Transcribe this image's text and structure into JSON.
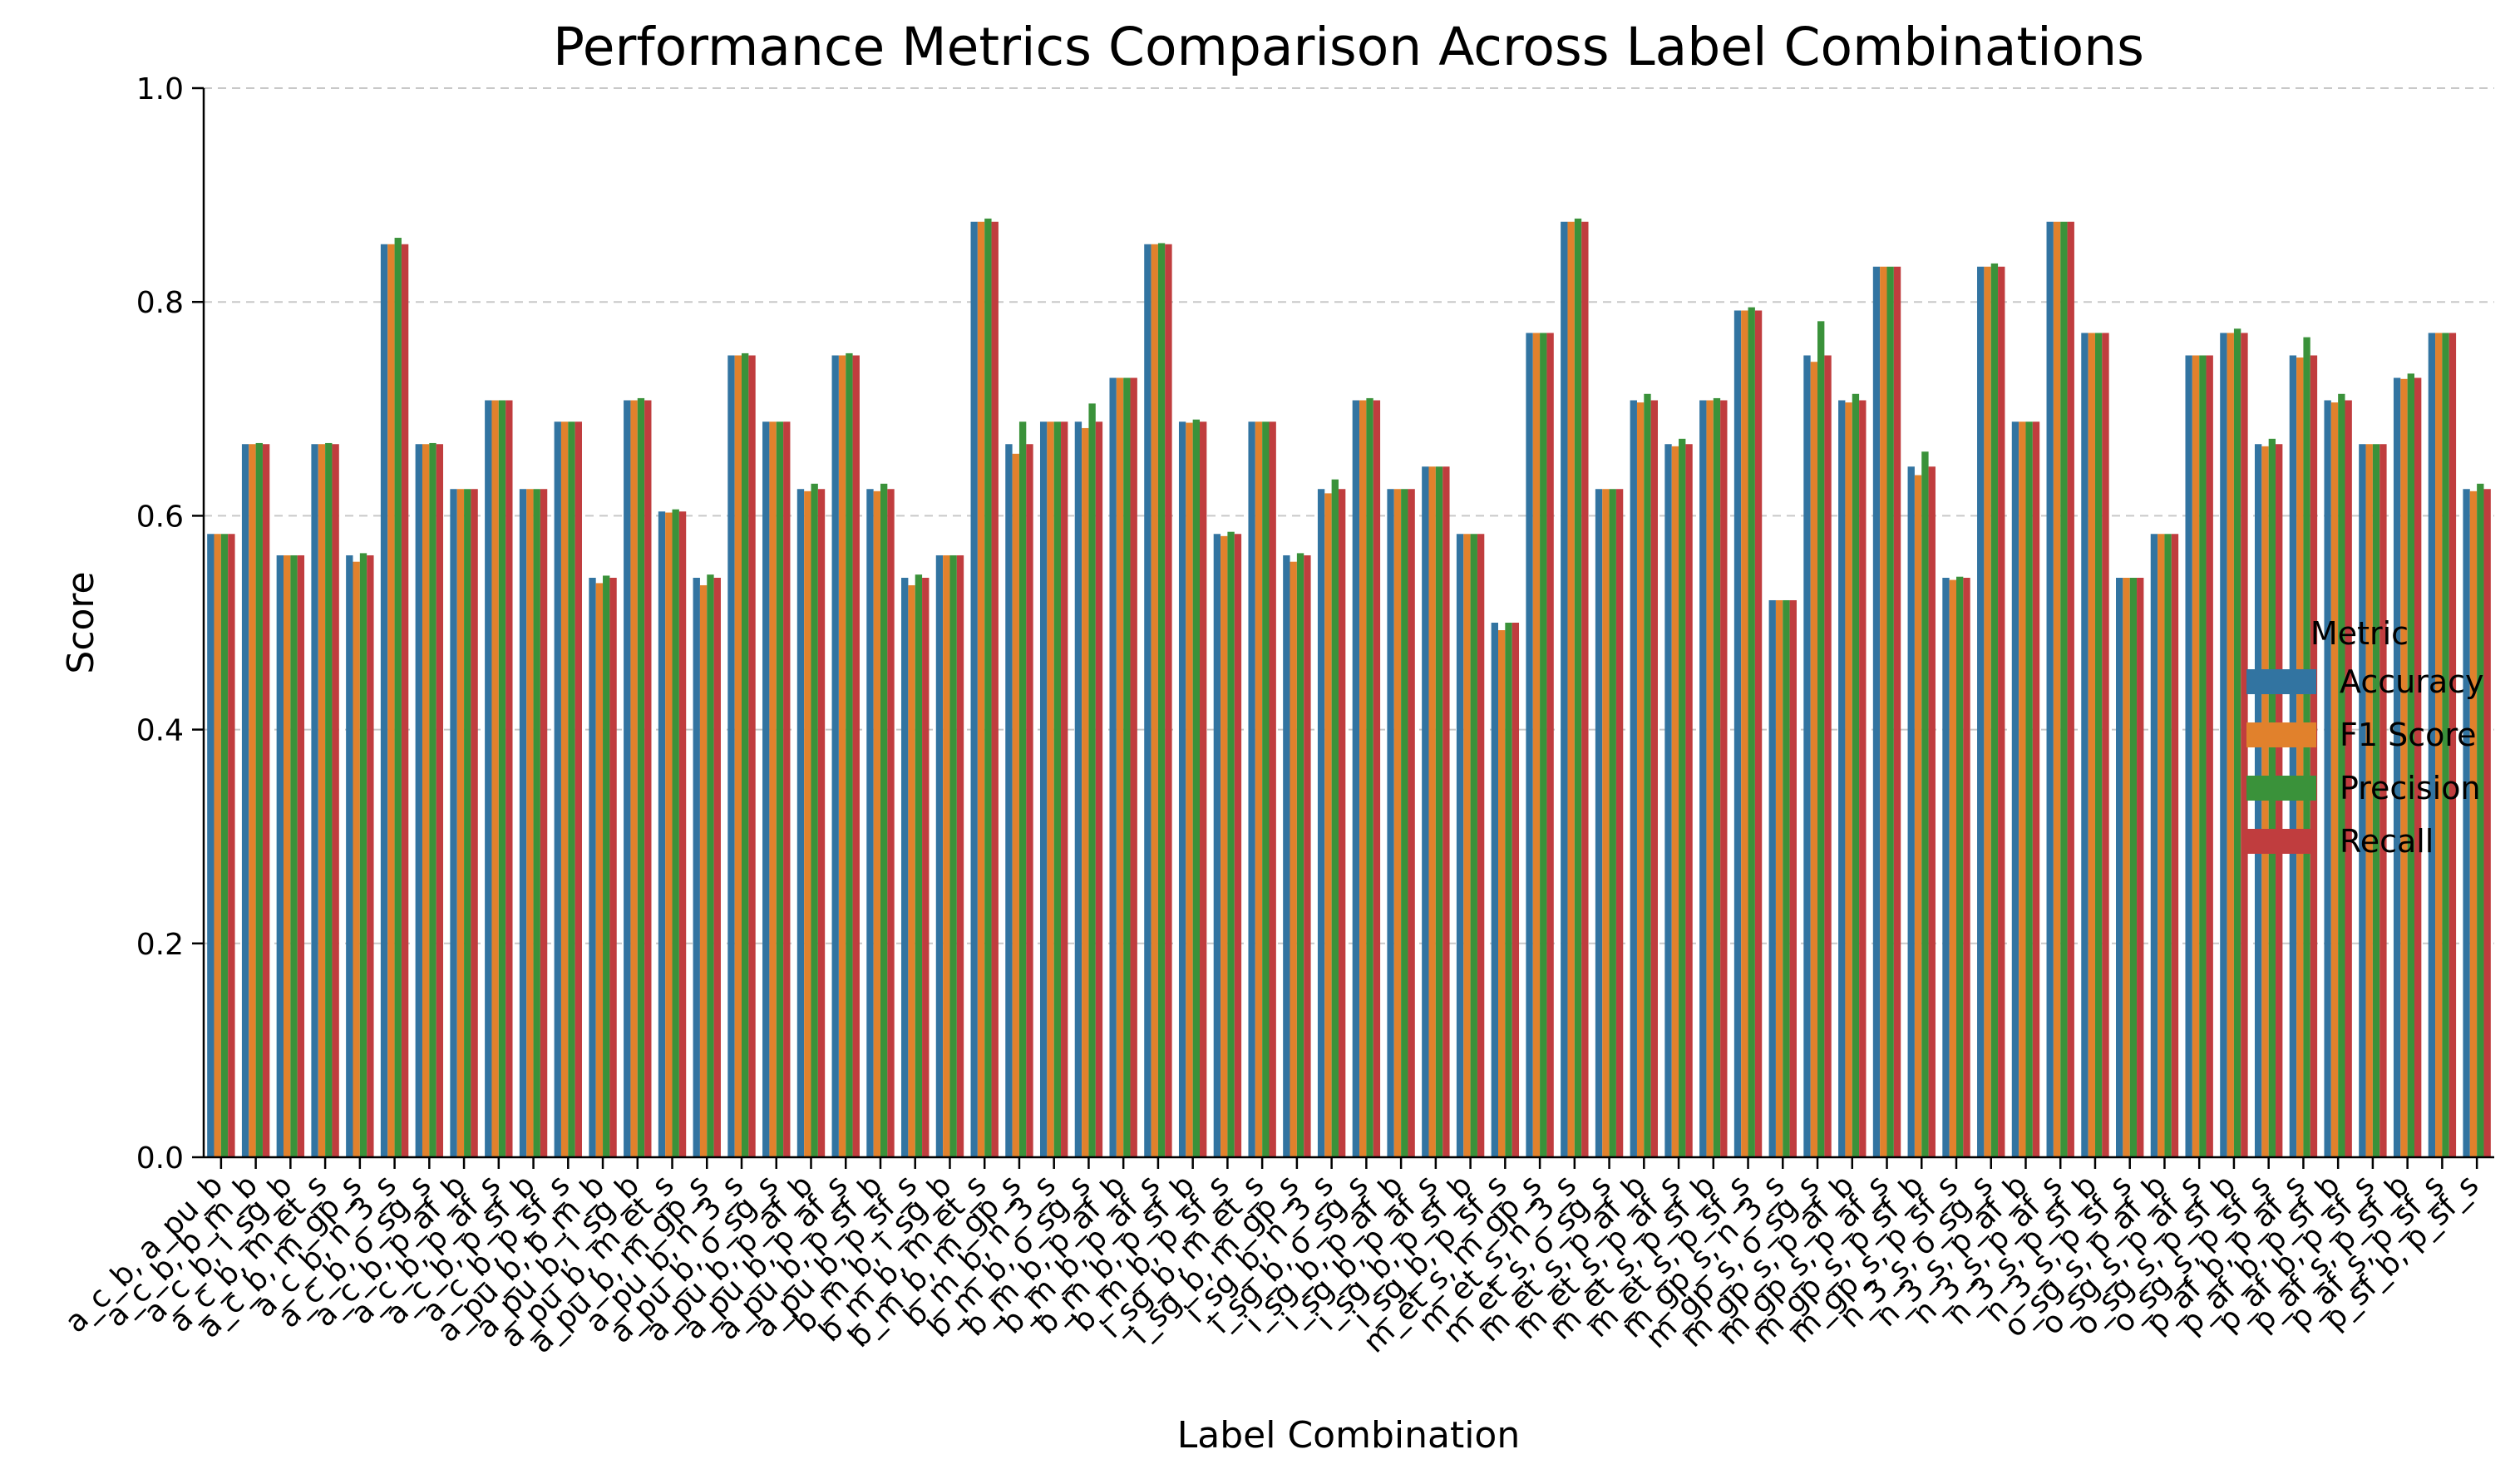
{
  "chart_data": {
    "type": "bar",
    "title": "Performance Metrics Comparison Across Label Combinations",
    "xlabel": "Label Combination",
    "ylabel": "Score",
    "ylim": [
      0,
      1
    ],
    "yticks": [
      "0.0",
      "0.2",
      "0.4",
      "0.6",
      "0.8",
      "1.0"
    ],
    "grid": "horizontal dashed",
    "legend": {
      "title": "Metric",
      "placement": "center-right"
    },
    "categories": [
      "a_c_b, a_pu_b",
      "a_c_b, b_m_b",
      "a_c_b, i_sg_b",
      "a_c_b, m_et_s",
      "a_c_b, m_gp_s",
      "a_c_b, n_3_s",
      "a_c_b, o_sg_s",
      "a_c_b, p_af_b",
      "a_c_b, p_af_s",
      "a_c_b, p_sf_b",
      "a_c_b, p_sf_s",
      "a_pu_b, b_m_b",
      "a_pu_b, i_sg_b",
      "a_pu_b, m_et_s",
      "a_pu_b, m_gp_s",
      "a_pu_b, n_3_s",
      "a_pu_b, o_sg_s",
      "a_pu_b, p_af_b",
      "a_pu_b, p_af_s",
      "a_pu_b, p_sf_b",
      "a_pu_b, p_sf_s",
      "b_m_b, i_sg_b",
      "b_m_b, m_et_s",
      "b_m_b, m_gp_s",
      "b_m_b, n_3_s",
      "b_m_b, o_sg_s",
      "b_m_b, p_af_b",
      "b_m_b, p_af_s",
      "b_m_b, p_sf_b",
      "b_m_b, p_sf_s",
      "i_sg_b, m_et_s",
      "i_sg_b, m_gp_s",
      "i_sg_b, n_3_s",
      "i_sg_b, o_sg_s",
      "i_sg_b, p_af_b",
      "i_sg_b, p_af_s",
      "i_sg_b, p_sf_b",
      "i_sg_b, p_sf_s",
      "m_et_s, m_gp_s",
      "m_et_s, n_3_s",
      "m_et_s, o_sg_s",
      "m_et_s, p_af_b",
      "m_et_s, p_af_s",
      "m_et_s, p_sf_b",
      "m_et_s, p_sf_s",
      "m_gp_s, n_3_s",
      "m_gp_s, o_sg_s",
      "m_gp_s, p_af_b",
      "m_gp_s, p_af_s",
      "m_gp_s, p_sf_b",
      "m_gp_s, p_sf_s",
      "n_3_s, o_sg_s",
      "n_3_s, p_af_b",
      "n_3_s, p_af_s",
      "n_3_s, p_sf_b",
      "n_3_s, p_sf_s",
      "o_sg_s, p_af_b",
      "o_sg_s, p_af_s",
      "o_sg_s, p_sf_b",
      "o_sg_s, p_sf_s",
      "p_af_b, p_af_s",
      "p_af_b, p_sf_b",
      "p_af_b, p_sf_s",
      "p_af_s, p_sf_b",
      "p_af_s, p_sf_s",
      "p_sf_b, p_sf_s"
    ],
    "series": [
      {
        "name": "Accuracy",
        "color": "#3274a1",
        "values": [
          0.583,
          0.667,
          0.563,
          0.667,
          0.563,
          0.854,
          0.667,
          0.625,
          0.708,
          0.625,
          0.688,
          0.542,
          0.708,
          0.604,
          0.542,
          0.75,
          0.688,
          0.625,
          0.75,
          0.625,
          0.542,
          0.563,
          0.875,
          0.667,
          0.688,
          0.688,
          0.729,
          0.854,
          0.688,
          0.583,
          0.688,
          0.563,
          0.625,
          0.708,
          0.625,
          0.646,
          0.583,
          0.5,
          0.771,
          0.875,
          0.625,
          0.708,
          0.667,
          0.708,
          0.792,
          0.521,
          0.75,
          0.708,
          0.833,
          0.646,
          0.542,
          0.833,
          0.688,
          0.875,
          0.771,
          0.542,
          0.583,
          0.75,
          0.771,
          0.667,
          0.75,
          0.708,
          0.667,
          0.729,
          0.771,
          0.625
        ]
      },
      {
        "name": "F1 Score",
        "color": "#e1812c",
        "values": [
          0.583,
          0.667,
          0.563,
          0.667,
          0.557,
          0.854,
          0.667,
          0.625,
          0.708,
          0.625,
          0.688,
          0.537,
          0.708,
          0.603,
          0.535,
          0.75,
          0.688,
          0.623,
          0.75,
          0.623,
          0.535,
          0.563,
          0.875,
          0.658,
          0.688,
          0.682,
          0.729,
          0.854,
          0.687,
          0.581,
          0.688,
          0.557,
          0.621,
          0.708,
          0.625,
          0.646,
          0.583,
          0.493,
          0.771,
          0.875,
          0.625,
          0.706,
          0.665,
          0.708,
          0.792,
          0.521,
          0.744,
          0.706,
          0.833,
          0.638,
          0.54,
          0.833,
          0.688,
          0.875,
          0.771,
          0.542,
          0.583,
          0.75,
          0.771,
          0.665,
          0.748,
          0.706,
          0.667,
          0.728,
          0.771,
          0.623
        ]
      },
      {
        "name": "Precision",
        "color": "#3a923a",
        "values": [
          0.583,
          0.668,
          0.563,
          0.668,
          0.565,
          0.86,
          0.668,
          0.625,
          0.708,
          0.625,
          0.688,
          0.544,
          0.71,
          0.606,
          0.545,
          0.752,
          0.688,
          0.63,
          0.752,
          0.63,
          0.545,
          0.563,
          0.878,
          0.688,
          0.688,
          0.705,
          0.729,
          0.855,
          0.69,
          0.585,
          0.688,
          0.565,
          0.634,
          0.71,
          0.625,
          0.646,
          0.583,
          0.5,
          0.771,
          0.878,
          0.625,
          0.714,
          0.672,
          0.71,
          0.795,
          0.521,
          0.782,
          0.714,
          0.833,
          0.66,
          0.543,
          0.836,
          0.688,
          0.875,
          0.771,
          0.542,
          0.583,
          0.75,
          0.775,
          0.672,
          0.767,
          0.714,
          0.667,
          0.733,
          0.771,
          0.63
        ]
      },
      {
        "name": "Recall",
        "color": "#c03d3e",
        "values": [
          0.583,
          0.667,
          0.563,
          0.667,
          0.563,
          0.854,
          0.667,
          0.625,
          0.708,
          0.625,
          0.688,
          0.542,
          0.708,
          0.604,
          0.542,
          0.75,
          0.688,
          0.625,
          0.75,
          0.625,
          0.542,
          0.563,
          0.875,
          0.667,
          0.688,
          0.688,
          0.729,
          0.854,
          0.688,
          0.583,
          0.688,
          0.563,
          0.625,
          0.708,
          0.625,
          0.646,
          0.583,
          0.5,
          0.771,
          0.875,
          0.625,
          0.708,
          0.667,
          0.708,
          0.792,
          0.521,
          0.75,
          0.708,
          0.833,
          0.646,
          0.542,
          0.833,
          0.688,
          0.875,
          0.771,
          0.542,
          0.583,
          0.75,
          0.771,
          0.667,
          0.75,
          0.708,
          0.667,
          0.729,
          0.771,
          0.625
        ]
      }
    ]
  }
}
